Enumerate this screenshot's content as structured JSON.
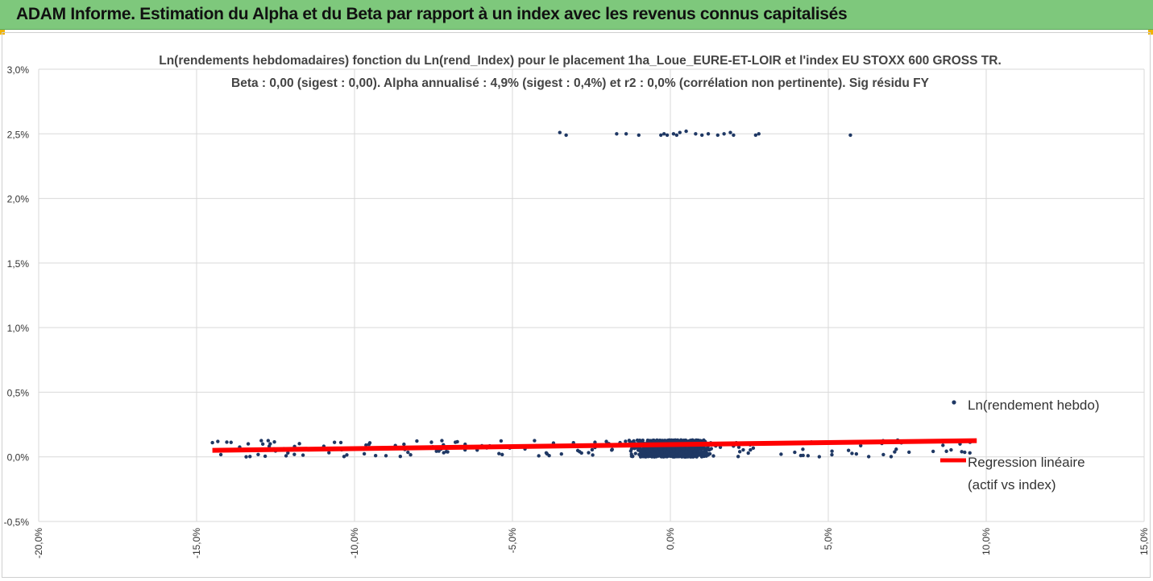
{
  "header": {
    "title": "ADAM Informe. Estimation du Alpha et du Beta par rapport à un index avec les revenus connus capitalisés"
  },
  "colors": {
    "banner": "#7ec87c",
    "points": "#1f3864",
    "regression": "#ff0000",
    "grid": "#d9d9d9",
    "accent_corner": "#f0b400"
  },
  "chart_data": {
    "type": "scatter",
    "title_line1": "Ln(rendements hebdomadaires) fonction du Ln(rend_Index) pour le placement 1ha_Loue_EURE-ET-LOIR et l'index EU STOXX 600 GROSS TR.",
    "title_line2": "Beta : 0,00 (sigest : 0,00). Alpha annualisé : 4,9% (sigest : 0,4%) et r2 : 0,0% (corrélation non pertinente). Sig résidu FY",
    "xlim": [
      -20,
      15
    ],
    "ylim": [
      -0.5,
      3.0
    ],
    "x_ticks": [
      "-20,0%",
      "-15,0%",
      "-10,0%",
      "-5,0%",
      "0,0%",
      "5,0%",
      "10,0%",
      "15,0%"
    ],
    "x_tick_values": [
      -20,
      -15,
      -10,
      -5,
      0,
      5,
      10,
      15
    ],
    "y_ticks": [
      "-0,5%",
      "0,0%",
      "0,5%",
      "1,0%",
      "1,5%",
      "2,0%",
      "2,5%",
      "3,0%"
    ],
    "y_tick_values": [
      -0.5,
      0,
      0.5,
      1.0,
      1.5,
      2.0,
      2.5,
      3.0
    ],
    "grid": "vertical and horizontal",
    "legend_position": "right",
    "series": [
      {
        "name": "Ln(rendement hebdo)",
        "kind": "scatter",
        "outlier_points": [
          [
            -3.5,
            2.51
          ],
          [
            -3.3,
            2.49
          ],
          [
            -1.7,
            2.5
          ],
          [
            -1.4,
            2.5
          ],
          [
            -1.0,
            2.49
          ],
          [
            -0.3,
            2.49
          ],
          [
            -0.2,
            2.5
          ],
          [
            -0.1,
            2.49
          ],
          [
            0.1,
            2.5
          ],
          [
            0.2,
            2.49
          ],
          [
            0.3,
            2.51
          ],
          [
            0.5,
            2.52
          ],
          [
            0.8,
            2.5
          ],
          [
            1.0,
            2.49
          ],
          [
            1.2,
            2.5
          ],
          [
            1.5,
            2.49
          ],
          [
            1.7,
            2.5
          ],
          [
            1.9,
            2.51
          ],
          [
            2.0,
            2.49
          ],
          [
            2.7,
            2.49
          ],
          [
            2.8,
            2.5
          ],
          [
            5.7,
            2.49
          ]
        ],
        "main_cluster": {
          "x_range": [
            -14.5,
            9.8
          ],
          "y_range": [
            0.0,
            0.13
          ]
        }
      },
      {
        "name": "Regression linéaire\n(actif vs index)",
        "kind": "line",
        "points": [
          [
            -14.5,
            0.05
          ],
          [
            9.7,
            0.125
          ]
        ]
      }
    ],
    "legend": {
      "entry1": "Ln(rendement hebdo)",
      "entry2_line1": "Regression linéaire",
      "entry2_line2": "(actif vs index)"
    }
  }
}
